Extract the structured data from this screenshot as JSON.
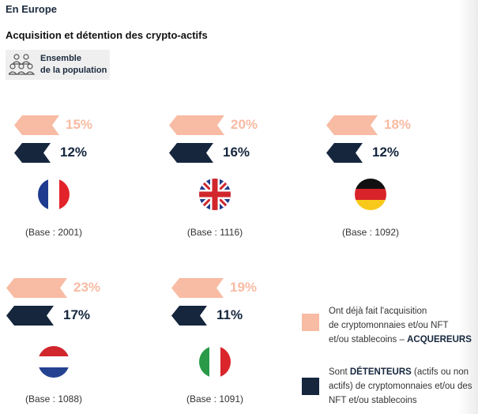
{
  "header": {
    "region": "En Europe",
    "title": "Acquisition et détention des crypto-actifs"
  },
  "population_badge": {
    "icon": "people-group-icon",
    "line1": "Ensemble",
    "line2": "de la population"
  },
  "colors": {
    "acquereurs": "#f8bba3",
    "detenteurs": "#15263d"
  },
  "countries": [
    {
      "name": "France",
      "flag": "france-flag-icon",
      "acquereurs": "15%",
      "detenteurs": "12%",
      "base": "(Base : 2001)"
    },
    {
      "name": "Royaume-Uni",
      "flag": "uk-flag-icon",
      "acquereurs": "20%",
      "detenteurs": "16%",
      "base": "(Base : 1116)"
    },
    {
      "name": "Allemagne",
      "flag": "germany-flag-icon",
      "acquereurs": "18%",
      "detenteurs": "12%",
      "base": "(Base : 1092)"
    },
    {
      "name": "Pays-Bas",
      "flag": "netherlands-flag-icon",
      "acquereurs": "23%",
      "detenteurs": "17%",
      "base": "(Base : 1088)"
    },
    {
      "name": "Italie",
      "flag": "italy-flag-icon",
      "acquereurs": "19%",
      "detenteurs": "11%",
      "base": "(Base : 1091)"
    }
  ],
  "legend": {
    "acquereurs": {
      "l1": "Ont déjà fait l'acquisition",
      "l2": "de cryptomonnaies et/ou NFT",
      "l3": "et/ou stablecoins – ",
      "bold": "ACQUEREURS"
    },
    "detenteurs": {
      "pre": "Sont ",
      "bold": "DÉTENTEURS",
      "post": " (actifs ou non",
      "l2": "actifs) de cryptomonnaies et/ou des",
      "l3": "NFT et/ou stablecoins"
    }
  }
}
